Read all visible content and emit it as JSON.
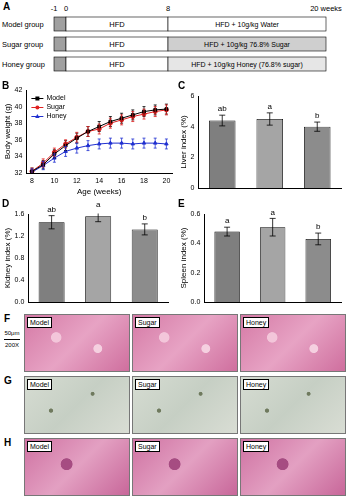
{
  "schematic": {
    "panel": "A",
    "time_labels": [
      "-1",
      "0",
      "8",
      "20 weeks"
    ],
    "groups": [
      {
        "name": "Model group",
        "phase1": "HFD",
        "phase2": "HFD + 10g/kg Water"
      },
      {
        "name": "Sugar group",
        "phase1": "HFD",
        "phase2": "HFD + 10g/kg 76.8% Sugar"
      },
      {
        "name": "Honey group",
        "phase1": "HFD",
        "phase2": "HFD + 10g/kg Honey (76.8% sugar)"
      }
    ]
  },
  "chart_data": [
    {
      "panel": "B",
      "type": "line",
      "x_label": "Age (weeks)",
      "y_label": "Body weight (g)",
      "x": [
        8,
        9,
        10,
        11,
        12,
        13,
        14,
        15,
        16,
        17,
        18,
        19,
        20
      ],
      "xlim": [
        7.5,
        20.5
      ],
      "xticks": [
        8,
        10,
        12,
        14,
        16,
        18,
        20
      ],
      "ylim": [
        32,
        42
      ],
      "yticks": [
        32,
        34,
        36,
        38,
        40,
        42
      ],
      "grid": false,
      "legend": "upper left",
      "series": [
        {
          "name": "Model",
          "color": "#000000",
          "marker": "square",
          "values": [
            32.2,
            33.0,
            34.3,
            35.3,
            36.2,
            37.0,
            37.6,
            38.2,
            38.6,
            39.0,
            39.4,
            39.6,
            39.7
          ],
          "errors": [
            0.4,
            0.5,
            0.5,
            0.6,
            0.6,
            0.6,
            0.6,
            0.6,
            0.6,
            0.6,
            0.6,
            0.6,
            0.6
          ]
        },
        {
          "name": "Sugar",
          "color": "#e02020",
          "marker": "circle",
          "values": [
            32.2,
            33.2,
            34.5,
            35.5,
            36.3,
            37.0,
            37.3,
            38.0,
            38.4,
            38.8,
            39.1,
            39.4,
            39.6
          ],
          "errors": [
            0.4,
            0.5,
            0.5,
            0.5,
            0.6,
            0.6,
            0.6,
            0.6,
            0.6,
            0.6,
            0.6,
            0.6,
            0.6
          ]
        },
        {
          "name": "Honey",
          "color": "#2030d0",
          "marker": "triangle",
          "values": [
            32.1,
            32.9,
            33.8,
            34.6,
            35.0,
            35.3,
            35.5,
            35.6,
            35.6,
            35.5,
            35.6,
            35.6,
            35.5
          ],
          "errors": [
            0.4,
            0.5,
            0.5,
            0.6,
            0.6,
            0.6,
            0.6,
            0.6,
            0.6,
            0.6,
            0.6,
            0.6,
            0.6
          ]
        }
      ]
    },
    {
      "panel": "C",
      "type": "bar",
      "y_label": "Liver index (%)",
      "categories": [
        null,
        null,
        null
      ],
      "values": [
        4.4,
        4.5,
        4.0
      ],
      "errors": [
        0.35,
        0.4,
        0.3
      ],
      "letters": [
        "ab",
        "a",
        "b"
      ],
      "colors": [
        "#7f7f7f",
        "#a5a5a5",
        "#8c8c8c"
      ],
      "ylim": [
        0,
        6
      ],
      "yticks": [
        0,
        2,
        4,
        6
      ],
      "grid": false,
      "tick_labels": "y"
    },
    {
      "panel": "D",
      "type": "bar",
      "y_label": "Kidney index (%)",
      "categories": [
        null,
        null,
        null
      ],
      "values": [
        1.45,
        1.56,
        1.32
      ],
      "errors": [
        0.12,
        0.1,
        0.1
      ],
      "letters": [
        "ab",
        "a",
        "b"
      ],
      "colors": [
        "#7f7f7f",
        "#a5a5a5",
        "#8c8c8c"
      ],
      "ylim": [
        0,
        1.6
      ],
      "yticks": [
        {
          "value": 0,
          "label": "0.0"
        },
        0.4,
        0.8,
        1.2,
        1.6
      ],
      "grid": false,
      "tick_labels": "y"
    },
    {
      "panel": "E",
      "type": "bar",
      "y_label": "Spleen index (%)",
      "categories": [
        null,
        null,
        null
      ],
      "values": [
        0.48,
        0.51,
        0.43
      ],
      "errors": [
        0.03,
        0.06,
        0.04
      ],
      "letters": [
        "a",
        "a",
        "b"
      ],
      "colors": [
        "#7f7f7f",
        "#a5a5a5",
        "#8c8c8c"
      ],
      "ylim": [
        0,
        0.6
      ],
      "yticks": [
        {
          "value": 0,
          "label": "0.0"
        },
        0.2,
        0.4,
        0.6
      ],
      "grid": false,
      "tick_labels": "y"
    }
  ],
  "images": [
    {
      "panel": "F",
      "labels": [
        "Model",
        "Sugar",
        "Honey"
      ]
    },
    {
      "panel": "G",
      "labels": [
        "Model",
        "Sugar",
        "Honey"
      ]
    },
    {
      "panel": "H",
      "labels": [
        "Model",
        "Sugar",
        "Honey"
      ]
    }
  ],
  "scale_bar": [
    "50μm",
    "200X"
  ]
}
